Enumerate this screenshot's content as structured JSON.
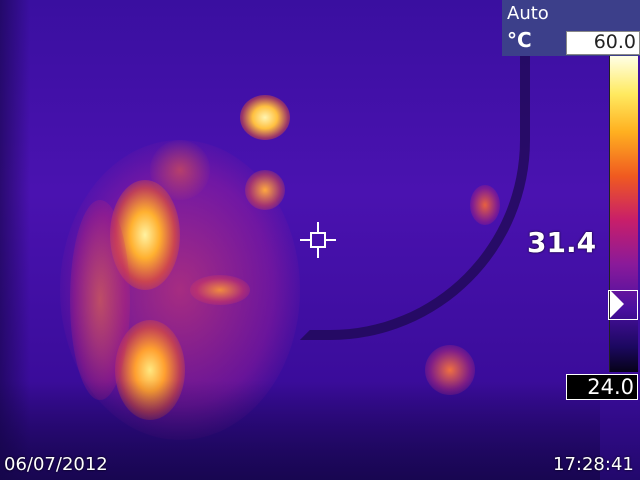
{
  "hud": {
    "range_mode": "Auto",
    "unit": "°C",
    "scale_max": "60.0",
    "scale_min": "24.0",
    "spot_temp": "31.4"
  },
  "footer": {
    "date": "06/07/2012",
    "time": "17:28:41"
  },
  "palette": {
    "hot": "#ffea60",
    "warm": "#f05a20",
    "mid": "#c81e6a",
    "cool": "#4a12b0",
    "cold": "#1c0860"
  },
  "icons": {
    "crosshair": "spot-crosshair-icon",
    "level": "level-marker-icon"
  }
}
